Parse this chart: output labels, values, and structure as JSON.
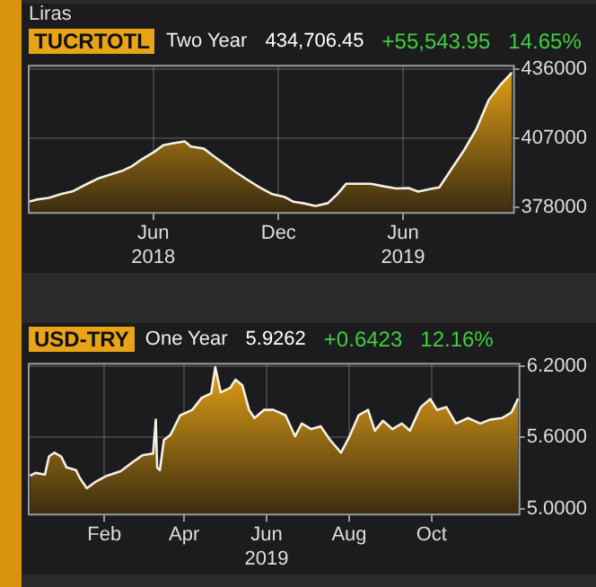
{
  "chart_data": [
    {
      "type": "area",
      "title": "TUCRTOTL",
      "subtitle": "Two Year",
      "ylabel": "Liras",
      "annotations": [
        "434,706.45",
        "+55,543.95",
        "14.65%"
      ],
      "x": [
        "2017-12-01",
        "2017-12-12",
        "2017-12-30",
        "2018-01-17",
        "2018-02-04",
        "2018-02-22",
        "2018-03-13",
        "2018-03-31",
        "2018-04-18",
        "2018-05-01",
        "2018-05-15",
        "2018-06-02",
        "2018-06-16",
        "2018-06-29",
        "2018-07-17",
        "2018-07-26",
        "2018-08-14",
        "2018-08-27",
        "2018-09-10",
        "2018-09-28",
        "2018-10-16",
        "2018-11-03",
        "2018-11-22",
        "2018-12-10",
        "2018-12-23",
        "2019-01-06",
        "2019-01-24",
        "2019-02-11",
        "2019-02-25",
        "2019-03-10",
        "2019-03-24",
        "2019-04-15",
        "2019-05-04",
        "2019-05-22",
        "2019-06-09",
        "2019-06-23",
        "2019-07-11",
        "2019-07-24",
        "2019-08-11",
        "2019-08-29",
        "2019-09-16",
        "2019-10-04",
        "2019-10-22",
        "2019-11-07"
      ],
      "series": [
        {
          "color": "#e8a317",
          "values": [
            380200,
            381100,
            381800,
            383400,
            384700,
            387400,
            390100,
            391800,
            393400,
            395200,
            398100,
            401200,
            404100,
            404800,
            405700,
            403500,
            402600,
            399700,
            396800,
            393000,
            389600,
            386300,
            383400,
            382200,
            380200,
            379600,
            378400,
            379600,
            383400,
            387800,
            387800,
            387800,
            386700,
            385800,
            386000,
            384500,
            385600,
            386300,
            394100,
            401900,
            410800,
            423100,
            429800,
            434706.45
          ]
        }
      ],
      "xlim": [
        "2017-12-01",
        "2019-11-10"
      ],
      "xticks": [
        {
          "value": "2018-06-01",
          "label": "Jun 2018"
        },
        {
          "value": "2018-12-01",
          "label": "Dec"
        },
        {
          "value": "2019-06-01",
          "label": "Jun 2019"
        }
      ],
      "ylim": [
        375500,
        437600
      ],
      "yticks": [
        378000,
        407000,
        436000
      ],
      "grid": true
    },
    {
      "type": "area",
      "title": "USD-TRY",
      "subtitle": "One Year",
      "annotations": [
        "5.9262",
        "+0.6423",
        "12.16%"
      ],
      "x": [
        "2018-12-08",
        "2018-12-12",
        "2018-12-19",
        "2018-12-22",
        "2018-12-26",
        "2018-12-31",
        "2019-01-04",
        "2019-01-11",
        "2019-01-14",
        "2019-01-19",
        "2019-01-25",
        "2019-02-03",
        "2019-02-13",
        "2019-02-22",
        "2019-03-01",
        "2019-03-08",
        "2019-03-09",
        "2019-03-11",
        "2019-03-12",
        "2019-03-14",
        "2019-03-17",
        "2019-03-22",
        "2019-03-29",
        "2019-04-07",
        "2019-04-14",
        "2019-04-21",
        "2019-04-24",
        "2019-04-28",
        "2019-05-05",
        "2019-05-09",
        "2019-05-14",
        "2019-05-19",
        "2019-05-23",
        "2019-05-30",
        "2019-06-06",
        "2019-06-15",
        "2019-06-22",
        "2019-06-27",
        "2019-07-04",
        "2019-07-11",
        "2019-07-18",
        "2019-07-26",
        "2019-08-01",
        "2019-08-08",
        "2019-08-15",
        "2019-08-20",
        "2019-08-26",
        "2019-09-02",
        "2019-09-09",
        "2019-09-15",
        "2019-09-23",
        "2019-09-30",
        "2019-10-05",
        "2019-10-12",
        "2019-10-19",
        "2019-10-28",
        "2019-11-06",
        "2019-11-13",
        "2019-11-22",
        "2019-11-29",
        "2019-12-04"
      ],
      "series": [
        {
          "color": "#e8a317",
          "values": [
            5.277,
            5.3,
            5.286,
            5.439,
            5.471,
            5.439,
            5.346,
            5.323,
            5.254,
            5.171,
            5.222,
            5.277,
            5.314,
            5.392,
            5.448,
            5.462,
            5.462,
            5.748,
            5.346,
            5.323,
            5.577,
            5.623,
            5.785,
            5.831,
            5.933,
            5.97,
            6.191,
            5.979,
            6.016,
            6.085,
            6.039,
            5.831,
            5.762,
            5.831,
            5.831,
            5.785,
            5.609,
            5.716,
            5.669,
            5.693,
            5.577,
            5.471,
            5.6,
            5.785,
            5.831,
            5.656,
            5.739,
            5.669,
            5.716,
            5.656,
            5.854,
            5.923,
            5.831,
            5.854,
            5.716,
            5.762,
            5.716,
            5.748,
            5.762,
            5.808,
            5.9262
          ]
        }
      ],
      "xlim": [
        "2018-12-07",
        "2019-12-05"
      ],
      "xticks": [
        {
          "value": "2019-02-01",
          "label": "Feb"
        },
        {
          "value": "2019-04-01",
          "label": "Apr"
        },
        {
          "value": "2019-06-01",
          "label": "Jun 2019"
        },
        {
          "value": "2019-08-01",
          "label": "Aug"
        },
        {
          "value": "2019-10-01",
          "label": "Oct"
        }
      ],
      "ylim": [
        4.95,
        6.22
      ],
      "yticks": [
        {
          "value": 5.0,
          "label": "5.0000"
        },
        {
          "value": 5.6,
          "label": "5.6000"
        },
        {
          "value": 6.2,
          "label": "6.2000"
        }
      ],
      "grid": true
    }
  ]
}
